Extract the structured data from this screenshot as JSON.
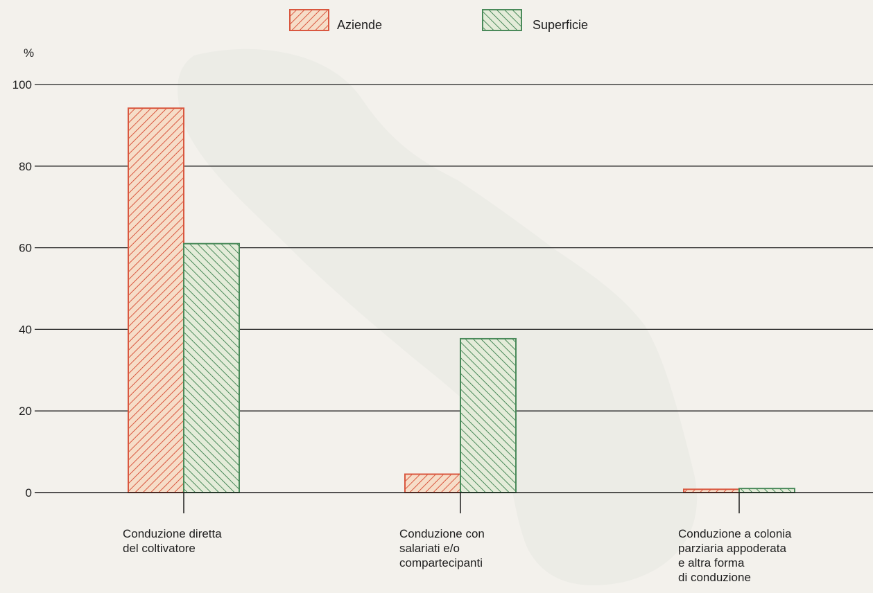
{
  "chart_data": {
    "type": "bar",
    "title": "",
    "xlabel": "",
    "ylabel": "%",
    "ylim": [
      0,
      100
    ],
    "yticks": [
      0,
      20,
      40,
      60,
      80,
      100
    ],
    "grid": true,
    "legend_position": "top-center",
    "categories": [
      [
        "Conduzione diretta",
        "del coltivatore"
      ],
      [
        "Conduzione con",
        "salariati e/o",
        "compartecipanti"
      ],
      [
        "Conduzione a colonia",
        "parziaria appoderata",
        "e altra forma",
        "di conduzione"
      ]
    ],
    "series": [
      {
        "name": "Aziende",
        "values": [
          94.2,
          4.5,
          0.8
        ],
        "color": "#d9573f",
        "fill": "#f6ddc8",
        "hatch": "forward"
      },
      {
        "name": "Superficie",
        "values": [
          61.0,
          37.7,
          1.0
        ],
        "color": "#4a8a5a",
        "fill": "#e4ecd9",
        "hatch": "backward"
      }
    ]
  }
}
